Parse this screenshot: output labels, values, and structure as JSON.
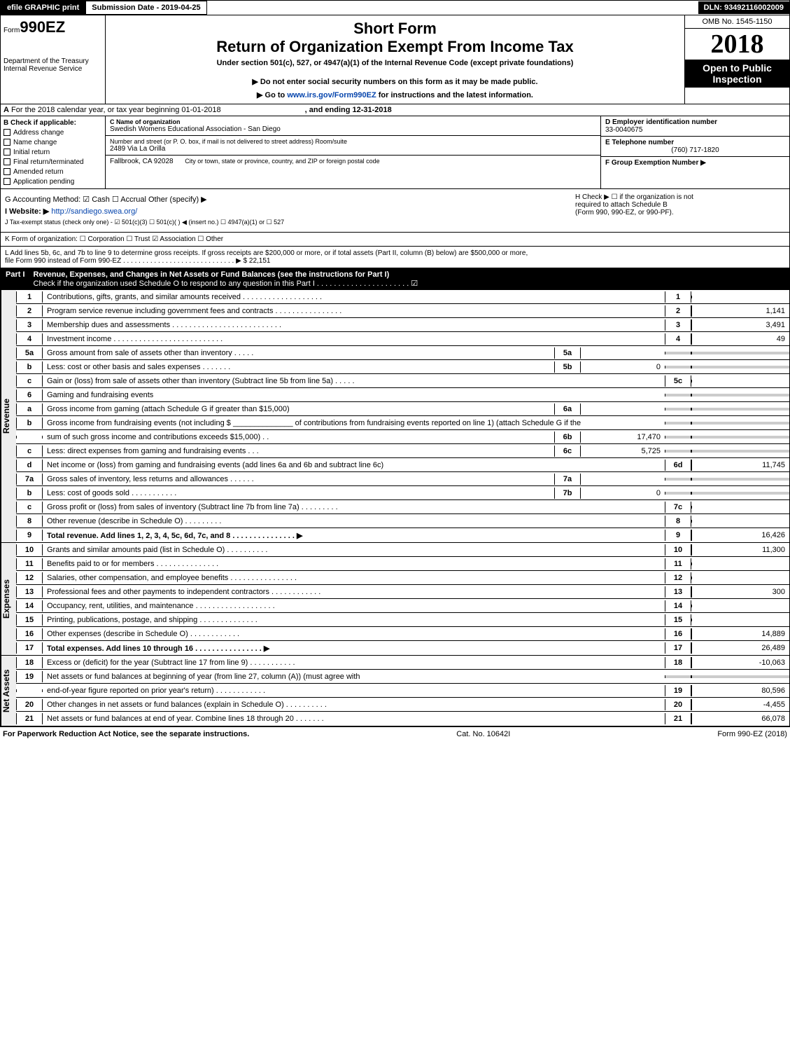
{
  "top": {
    "efile": "efile GRAPHIC print",
    "submission": "Submission Date - 2019-04-25",
    "dln": "DLN: 93492116002009"
  },
  "header": {
    "form_prefix": "Form",
    "form_no": "990EZ",
    "short": "Short Form",
    "title": "Return of Organization Exempt From Income Tax",
    "subtitle": "Under section 501(c), 527, or 4947(a)(1) of the Internal Revenue Code (except private foundations)",
    "omb": "OMB No. 1545-1150",
    "year": "2018",
    "open": "Open to Public Inspection",
    "dept1": "Department of the Treasury",
    "dept2": "Internal Revenue Service",
    "warn1": "▶ Do not enter social security numbers on this form as it may be made public.",
    "warn2": "▶ Go to www.irs.gov/Form990EZ for instructions and the latest information.",
    "irs_link_text": "www.irs.gov/Form990EZ"
  },
  "rowA": {
    "label_a": "A",
    "text": "For the 2018 calendar year, or tax year beginning 01-01-2018",
    "and_ending": ", and ending 12-31-2018"
  },
  "blockB": {
    "label": "B  Check if applicable:",
    "cks": [
      "Address change",
      "Name change",
      "Initial return",
      "Final return/terminated",
      "Amended return",
      "Application pending"
    ],
    "c_label": "C Name of organization",
    "c_name": "Swedish Womens Educational Association - San Diego",
    "street_label": "Number and street (or P. O. box, if mail is not delivered to street address)          Room/suite",
    "street": "2489 Via La Orilla",
    "city_label": "City or town, state or province, country, and ZIP or foreign postal code",
    "city": "Fallbrook, CA  92028",
    "d_label": "D Employer identification number",
    "d_val": "33-0040675",
    "e_label": "E Telephone number",
    "e_val": "(760) 717-1820",
    "f_label": "F Group Exemption Number  ▶"
  },
  "gh": {
    "g": "G Accounting Method:   ☑ Cash   ☐ Accrual   Other (specify) ▶",
    "h1": "H   Check ▶  ☐  if the organization is not",
    "h2": "required to attach Schedule B",
    "h3": "(Form 990, 990-EZ, or 990-PF).",
    "i_label": "I Website: ▶",
    "i_val": "http://sandiego.swea.org/",
    "j": "J Tax-exempt status (check only one) -  ☑ 501(c)(3)  ☐ 501(c)(  ) ◀ (insert no.)  ☐ 4947(a)(1) or  ☐ 527",
    "k": "K Form of organization:   ☐ Corporation   ☐ Trust   ☑ Association   ☐ Other",
    "l1": "L Add lines 5b, 6c, and 7b to line 9 to determine gross receipts. If gross receipts are $200,000 or more, or if total assets (Part II, column (B) below) are $500,000 or more,",
    "l2": "file Form 990 instead of Form 990-EZ  .  .  .  .  .  .  .  .  .  .  .  .  .  .  .  .  .  .  .  .  .  .  .  .  .  .  .  .  .  ▶ $ 22,151"
  },
  "part1": {
    "label": "Part I",
    "title": "Revenue, Expenses, and Changes in Net Assets or Fund Balances (see the instructions for Part I)",
    "check": "Check if the organization used Schedule O to respond to any question in this Part I .  .  .  .  .  .  .  .  .  .  .  .  .  .  .  .  .  .  .  .  .  .  ☑"
  },
  "sections": {
    "revenue_label": "Revenue",
    "expenses_label": "Expenses",
    "netassets_label": "Net Assets"
  },
  "lines": [
    {
      "n": "1",
      "t": "Contributions, gifts, grants, and similar amounts received  .  .  .  .  .  .  .  .  .  .  .  .  .  .  .  .  .  .  .",
      "rn": "1",
      "v": ""
    },
    {
      "n": "2",
      "t": "Program service revenue including government fees and contracts  .  .  .  .  .  .  .  .  .  .  .  .  .  .  .  .",
      "rn": "2",
      "v": "1,141"
    },
    {
      "n": "3",
      "t": "Membership dues and assessments  .  .  .  .  .  .  .  .  .  .  .  .  .  .  .  .  .  .  .  .  .  .  .  .  .  .",
      "rn": "3",
      "v": "3,491"
    },
    {
      "n": "4",
      "t": "Investment income  .  .  .  .  .  .  .  .  .  .  .  .  .  .  .  .  .  .  .  .  .  .  .  .  .  .",
      "rn": "4",
      "v": "49"
    },
    {
      "n": "5a",
      "t": "Gross amount from sale of assets other than inventory  .  .  .  .  .",
      "mn": "5a",
      "mv": ""
    },
    {
      "n": "b",
      "t": "Less: cost or other basis and sales expenses  .  .  .  .  .  .  .",
      "mn": "5b",
      "mv": "0"
    },
    {
      "n": "c",
      "t": "Gain or (loss) from sale of assets other than inventory (Subtract line 5b from line 5a)                         .  .  .  .  .",
      "rn": "5c",
      "v": ""
    },
    {
      "n": "6",
      "t": "Gaming and fundraising events"
    },
    {
      "n": "a",
      "t": "Gross income from gaming (attach Schedule G if greater than $15,000)",
      "mn": "6a",
      "mv": ""
    },
    {
      "n": "b",
      "t": "Gross income from fundraising events (not including $ ______________ of contributions from fundraising events reported on line 1) (attach Schedule G if the"
    },
    {
      "n": "",
      "t": "sum of such gross income and contributions exceeds $15,000)            .  .",
      "mn": "6b",
      "mv": "17,470"
    },
    {
      "n": "c",
      "t": "Less: direct expenses from gaming and fundraising events                .  .  .",
      "mn": "6c",
      "mv": "5,725"
    },
    {
      "n": "d",
      "t": "Net income or (loss) from gaming and fundraising events (add lines 6a and 6b and subtract line 6c)",
      "rn": "6d",
      "v": "11,745"
    },
    {
      "n": "7a",
      "t": "Gross sales of inventory, less returns and allowances            .  .  .  .  .  .",
      "mn": "7a",
      "mv": ""
    },
    {
      "n": "b",
      "t": "Less: cost of goods sold                                          .  .  .  .  .  .  .  .  .  .  .",
      "mn": "7b",
      "mv": "0"
    },
    {
      "n": "c",
      "t": "Gross profit or (loss) from sales of inventory (Subtract line 7b from line 7a)            .  .  .  .  .  .  .  .  .",
      "rn": "7c",
      "v": ""
    },
    {
      "n": "8",
      "t": "Other revenue (describe in Schedule O)                                                   .  .  .  .  .  .  .  .  .",
      "rn": "8",
      "v": ""
    },
    {
      "n": "9",
      "t": "Total revenue. Add lines 1, 2, 3, 4, 5c, 6d, 7c, and 8               .  .  .  .  .  .  .  .  .  .  .  .  .  .  .  ▶",
      "rn": "9",
      "v": "16,426",
      "bold": true
    }
  ],
  "exp_lines": [
    {
      "n": "10",
      "t": "Grants and similar amounts paid (list in Schedule O)                                    .  .  .  .  .  .  .  .  .  .",
      "rn": "10",
      "v": "11,300"
    },
    {
      "n": "11",
      "t": "Benefits paid to or for members                                          .  .  .  .  .  .  .  .  .  .  .  .  .  .  .",
      "rn": "11",
      "v": ""
    },
    {
      "n": "12",
      "t": "Salaries, other compensation, and employee benefits            .  .  .  .  .  .  .  .  .  .  .  .  .  .  .  .",
      "rn": "12",
      "v": ""
    },
    {
      "n": "13",
      "t": "Professional fees and other payments to independent contractors               .  .  .  .  .  .  .  .  .  .  .  .",
      "rn": "13",
      "v": "300"
    },
    {
      "n": "14",
      "t": "Occupancy, rent, utilities, and maintenance            .  .  .  .  .  .  .  .  .  .  .  .  .  .  .  .  .  .  .",
      "rn": "14",
      "v": ""
    },
    {
      "n": "15",
      "t": "Printing, publications, postage, and shipping                              .  .  .  .  .  .  .  .  .  .  .  .  .  .",
      "rn": "15",
      "v": ""
    },
    {
      "n": "16",
      "t": "Other expenses (describe in Schedule O)                                          .  .  .  .  .  .  .  .  .  .  .  .",
      "rn": "16",
      "v": "14,889"
    },
    {
      "n": "17",
      "t": "Total expenses. Add lines 10 through 16                         .  .  .  .  .  .  .  .  .  .  .  .  .  .  .  .  ▶",
      "rn": "17",
      "v": "26,489",
      "bold": true
    }
  ],
  "na_lines": [
    {
      "n": "18",
      "t": "Excess or (deficit) for the year (Subtract line 17 from line 9)                        .  .  .  .  .  .  .  .  .  .  .",
      "rn": "18",
      "v": "-10,063"
    },
    {
      "n": "19",
      "t": "Net assets or fund balances at beginning of year (from line 27, column (A)) (must agree with"
    },
    {
      "n": "",
      "t": "end-of-year figure reported on prior year's return)                                  .  .  .  .  .  .  .  .  .  .  .  .",
      "rn": "19",
      "v": "80,596"
    },
    {
      "n": "20",
      "t": "Other changes in net assets or fund balances (explain in Schedule O)              .  .  .  .  .  .  .  .  .  .",
      "rn": "20",
      "v": "-4,455"
    },
    {
      "n": "21",
      "t": "Net assets or fund balances at end of year. Combine lines 18 through 20                      .  .  .  .  .  .  .",
      "rn": "21",
      "v": "66,078"
    }
  ],
  "footer": {
    "left": "For Paperwork Reduction Act Notice, see the separate instructions.",
    "mid": "Cat. No. 10642I",
    "right": "Form 990-EZ (2018)"
  }
}
